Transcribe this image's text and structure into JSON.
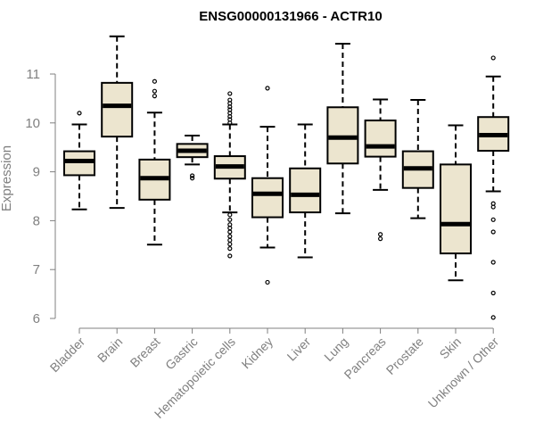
{
  "chart_data": {
    "type": "boxplot",
    "title": "ENSG00000131966 - ACTR10",
    "xlabel": "",
    "ylabel": "Expression",
    "ylim": [
      6,
      11
    ],
    "yticks": [
      6,
      7,
      8,
      9,
      10,
      11
    ],
    "grid": false,
    "box_fill": "#ece5cf",
    "box_stroke": "#000000",
    "axis_color": "#808080",
    "categories": [
      "Bladder",
      "Brain",
      "Breast",
      "Gastric",
      "Hematopoietic cells",
      "Kidney",
      "Liver",
      "Lung",
      "Pancreas",
      "Prostate",
      "Skin",
      "Unknown / Other"
    ],
    "series": [
      {
        "name": "Bladder",
        "whisker_low": 8.23,
        "q1": 8.93,
        "median": 9.22,
        "q3": 9.42,
        "whisker_high": 9.97,
        "outliers": [
          10.2
        ]
      },
      {
        "name": "Brain",
        "whisker_low": 8.26,
        "q1": 9.72,
        "median": 10.35,
        "q3": 10.82,
        "whisker_high": 11.77,
        "outliers": []
      },
      {
        "name": "Breast",
        "whisker_low": 7.51,
        "q1": 8.43,
        "median": 8.87,
        "q3": 9.25,
        "whisker_high": 10.21,
        "outliers": [
          10.55,
          10.65,
          10.85
        ]
      },
      {
        "name": "Gastric",
        "whisker_low": 9.15,
        "q1": 9.3,
        "median": 9.43,
        "q3": 9.57,
        "whisker_high": 9.74,
        "outliers": [
          8.87,
          8.92
        ]
      },
      {
        "name": "Hematopoietic cells",
        "whisker_low": 8.17,
        "q1": 8.86,
        "median": 9.11,
        "q3": 9.32,
        "whisker_high": 9.97,
        "outliers": [
          10.0,
          10.07,
          10.13,
          10.2,
          10.27,
          10.33,
          10.4,
          10.47,
          10.6,
          8.12,
          8.02,
          7.92,
          7.85,
          7.77,
          7.68,
          7.6,
          7.52,
          7.43,
          7.28
        ]
      },
      {
        "name": "Kidney",
        "whisker_low": 7.45,
        "q1": 8.07,
        "median": 8.55,
        "q3": 8.87,
        "whisker_high": 9.92,
        "outliers": [
          10.71,
          6.74
        ]
      },
      {
        "name": "Liver",
        "whisker_low": 7.25,
        "q1": 8.17,
        "median": 8.53,
        "q3": 9.07,
        "whisker_high": 9.97,
        "outliers": []
      },
      {
        "name": "Lung",
        "whisker_low": 8.15,
        "q1": 9.17,
        "median": 9.7,
        "q3": 10.32,
        "whisker_high": 11.62,
        "outliers": []
      },
      {
        "name": "Pancreas",
        "whisker_low": 8.63,
        "q1": 9.31,
        "median": 9.52,
        "q3": 10.05,
        "whisker_high": 10.48,
        "outliers": [
          7.72,
          7.63
        ]
      },
      {
        "name": "Prostate",
        "whisker_low": 8.05,
        "q1": 8.67,
        "median": 9.07,
        "q3": 9.42,
        "whisker_high": 10.47,
        "outliers": []
      },
      {
        "name": "Skin",
        "whisker_low": 6.78,
        "q1": 7.33,
        "median": 7.93,
        "q3": 9.15,
        "whisker_high": 9.95,
        "outliers": []
      },
      {
        "name": "Unknown / Other",
        "whisker_low": 8.6,
        "q1": 9.43,
        "median": 9.75,
        "q3": 10.12,
        "whisker_high": 10.95,
        "outliers": [
          11.33,
          8.35,
          8.28,
          8.02,
          7.77,
          7.15,
          6.52,
          6.02
        ]
      }
    ]
  }
}
